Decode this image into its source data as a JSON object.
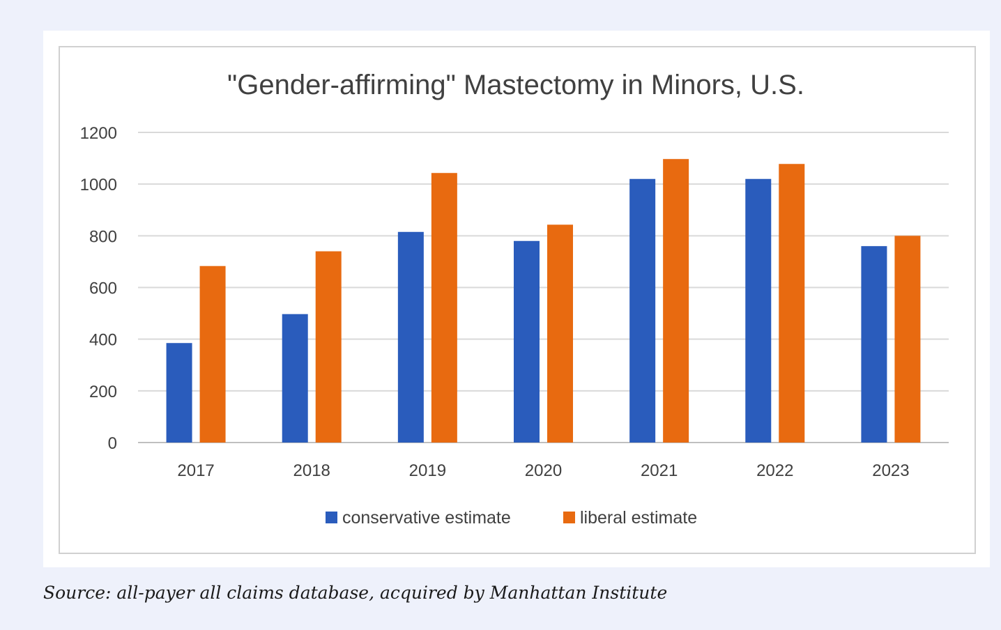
{
  "chart_data": {
    "type": "bar",
    "title": "\"Gender-affirming\" Mastectomy in Minors, U.S.",
    "categories": [
      "2017",
      "2018",
      "2019",
      "2020",
      "2021",
      "2022",
      "2023"
    ],
    "series": [
      {
        "name": "conservative estimate",
        "color": "#2a5cbc",
        "values": [
          385,
          497,
          815,
          780,
          1020,
          1020,
          760
        ]
      },
      {
        "name": "liberal estimate",
        "color": "#e86a10",
        "values": [
          683,
          740,
          1043,
          843,
          1097,
          1078,
          800
        ]
      }
    ],
    "ylim": [
      0,
      1200
    ],
    "yticks": [
      0,
      200,
      400,
      600,
      800,
      1000,
      1200
    ],
    "grid": true,
    "legend_position": "bottom"
  },
  "caption": "Source: all-payer all claims database, acquired by Manhattan Institute"
}
